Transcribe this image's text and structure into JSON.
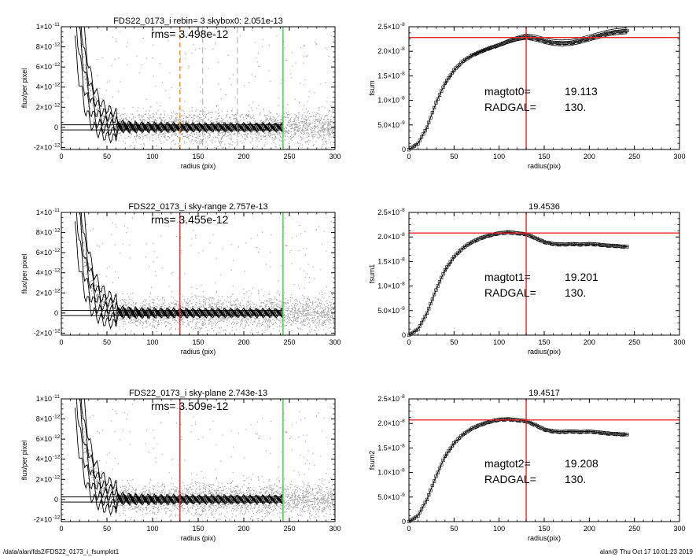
{
  "footer": {
    "left": "/data/alan/fds2/FDS22_0173_i_fsumplot1",
    "right": "alan@  Thu Oct 17 10:01:23 2019"
  },
  "colors": {
    "red": "#e8262b",
    "green": "#35d435",
    "orange": "#f08a1c",
    "gray": "#9a9a9a",
    "black": "#000000"
  },
  "chart_data": [
    {
      "id": "profile-1",
      "type": "scatter",
      "title": "FDS22_0173_i rebin= 3    skybox0:  2.051e-13",
      "annotation": "rms= 3.498e-12",
      "xlabel": "radius (pix)",
      "ylabel": "flux/per pixel",
      "xlim": [
        0,
        300
      ],
      "ylim": [
        -2.2e-12,
        1e-11
      ],
      "xticks": [
        "0",
        "50",
        "100",
        "150",
        "200",
        "250",
        "300"
      ],
      "yticks": [
        {
          "v": 1e-11,
          "m": "1×10",
          "e": "-11"
        },
        {
          "v": 8e-12,
          "m": "8×10",
          "e": "-12"
        },
        {
          "v": 6e-12,
          "m": "6×10",
          "e": "-12"
        },
        {
          "v": 4e-12,
          "m": "4×10",
          "e": "-12"
        },
        {
          "v": 2e-12,
          "m": "2×10",
          "e": "-12"
        },
        {
          "v": 0,
          "m": "0",
          "e": ""
        },
        {
          "v": -2e-12,
          "m": "-2×10",
          "e": "-12"
        }
      ],
      "vlines": [
        {
          "x": 130,
          "color": "orange",
          "style": "dashed"
        },
        {
          "x": 155,
          "color": "gray",
          "style": "dashed"
        },
        {
          "x": 193,
          "color": "gray",
          "style": "dashed"
        },
        {
          "x": 243,
          "color": "green",
          "style": "solid"
        }
      ],
      "hlines": [
        2.5e-13,
        -2.5e-13
      ],
      "profile": {
        "r0": 15,
        "a": 1.6e-11,
        "rs": 10,
        "rmax": 243
      }
    },
    {
      "id": "growth-1",
      "type": "line",
      "title": "",
      "xlabel": "radius(pix)",
      "ylabel": "fsum",
      "xlim": [
        0,
        300
      ],
      "ylim": [
        0,
        2.5e-08
      ],
      "xticks": [
        "0",
        "50",
        "100",
        "150",
        "200",
        "250",
        "300"
      ],
      "yticks": [
        {
          "v": 2.5e-08,
          "m": "2.5×10",
          "e": "-8"
        },
        {
          "v": 2e-08,
          "m": "2.0×10",
          "e": "-8"
        },
        {
          "v": 1.5e-08,
          "m": "1.5×10",
          "e": "-8"
        },
        {
          "v": 1e-08,
          "m": "1.0×10",
          "e": "-8"
        },
        {
          "v": 5e-09,
          "m": "5.0×10",
          "e": "-9"
        },
        {
          "v": 0,
          "m": "0",
          "e": ""
        }
      ],
      "vline_x": 130,
      "hline_y": 2.28e-08,
      "curve": [
        [
          0,
          0
        ],
        [
          10,
          1.2e-09
        ],
        [
          20,
          4.5e-09
        ],
        [
          30,
          9.5e-09
        ],
        [
          40,
          1.35e-08
        ],
        [
          50,
          1.62e-08
        ],
        [
          60,
          1.8e-08
        ],
        [
          70,
          1.92e-08
        ],
        [
          80,
          2e-08
        ],
        [
          90,
          2.07e-08
        ],
        [
          100,
          2.13e-08
        ],
        [
          110,
          2.2e-08
        ],
        [
          120,
          2.26e-08
        ],
        [
          130,
          2.3e-08
        ],
        [
          140,
          2.27e-08
        ],
        [
          150,
          2.22e-08
        ],
        [
          160,
          2.18e-08
        ],
        [
          170,
          2.17e-08
        ],
        [
          180,
          2.18e-08
        ],
        [
          190,
          2.22e-08
        ],
        [
          200,
          2.27e-08
        ],
        [
          210,
          2.32e-08
        ],
        [
          220,
          2.37e-08
        ],
        [
          230,
          2.4e-08
        ],
        [
          243,
          2.42e-08
        ]
      ],
      "envelope": 6e-10,
      "labels": [
        [
          "magtot0=",
          "19.113"
        ],
        [
          "RADGAL=",
          "130."
        ]
      ]
    },
    {
      "id": "profile-2",
      "type": "scatter",
      "title": "FDS22_0173_i sky-range  2.757e-13",
      "annotation": "rms= 3.455e-12",
      "xlabel": "radius (pix)",
      "ylabel": "flux/per pixel",
      "xlim": [
        0,
        300
      ],
      "ylim": [
        -2.2e-12,
        1e-11
      ],
      "xticks": [
        "0",
        "50",
        "100",
        "150",
        "200",
        "250",
        "300"
      ],
      "yticks": [
        {
          "v": 1e-11,
          "m": "1×10",
          "e": "-11"
        },
        {
          "v": 8e-12,
          "m": "8×10",
          "e": "-12"
        },
        {
          "v": 6e-12,
          "m": "6×10",
          "e": "-12"
        },
        {
          "v": 4e-12,
          "m": "4×10",
          "e": "-12"
        },
        {
          "v": 2e-12,
          "m": "2×10",
          "e": "-12"
        },
        {
          "v": 0,
          "m": "0",
          "e": ""
        },
        {
          "v": -2e-12,
          "m": "-2×10",
          "e": "-12"
        }
      ],
      "vlines": [
        {
          "x": 130,
          "color": "red",
          "style": "solid"
        },
        {
          "x": 243,
          "color": "green",
          "style": "solid"
        }
      ],
      "hlines": [
        2.5e-13,
        -2.5e-13
      ],
      "profile": {
        "r0": 15,
        "a": 1.6e-11,
        "rs": 10,
        "rmax": 243
      }
    },
    {
      "id": "growth-2",
      "type": "line",
      "title": "19.4536",
      "xlabel": "radius(pix)",
      "ylabel": "fsum1",
      "xlim": [
        0,
        300
      ],
      "ylim": [
        0,
        2.5e-08
      ],
      "xticks": [
        "0",
        "50",
        "100",
        "150",
        "200",
        "250",
        "300"
      ],
      "yticks": [
        {
          "v": 2.5e-08,
          "m": "2.5×10",
          "e": "-8"
        },
        {
          "v": 2e-08,
          "m": "2.0×10",
          "e": "-8"
        },
        {
          "v": 1.5e-08,
          "m": "1.5×10",
          "e": "-8"
        },
        {
          "v": 1e-08,
          "m": "1.0×10",
          "e": "-8"
        },
        {
          "v": 5e-09,
          "m": "5.0×10",
          "e": "-9"
        },
        {
          "v": 0,
          "m": "0",
          "e": ""
        }
      ],
      "vline_x": 130,
      "hline_y": 2.08e-08,
      "curve": [
        [
          0,
          0
        ],
        [
          10,
          1.2e-09
        ],
        [
          20,
          4.5e-09
        ],
        [
          30,
          9.2e-09
        ],
        [
          40,
          1.33e-08
        ],
        [
          50,
          1.6e-08
        ],
        [
          60,
          1.78e-08
        ],
        [
          70,
          1.9e-08
        ],
        [
          80,
          1.98e-08
        ],
        [
          90,
          2.04e-08
        ],
        [
          100,
          2.08e-08
        ],
        [
          110,
          2.1e-08
        ],
        [
          120,
          2.08e-08
        ],
        [
          130,
          2.06e-08
        ],
        [
          140,
          1.98e-08
        ],
        [
          150,
          1.9e-08
        ],
        [
          160,
          1.86e-08
        ],
        [
          170,
          1.85e-08
        ],
        [
          180,
          1.86e-08
        ],
        [
          190,
          1.85e-08
        ],
        [
          200,
          1.86e-08
        ],
        [
          210,
          1.85e-08
        ],
        [
          220,
          1.83e-08
        ],
        [
          230,
          1.82e-08
        ],
        [
          243,
          1.8e-08
        ]
      ],
      "envelope": 0,
      "labels": [
        [
          "magtot1=",
          "19.201"
        ],
        [
          "RADGAL=",
          "130."
        ]
      ]
    },
    {
      "id": "profile-3",
      "type": "scatter",
      "title": "FDS22_0173_i sky-plane  2.743e-13",
      "annotation": "rms= 3.509e-12",
      "xlabel": "radius (pix)",
      "ylabel": "flux/per pixel",
      "xlim": [
        0,
        300
      ],
      "ylim": [
        -2.2e-12,
        1e-11
      ],
      "xticks": [
        "0",
        "50",
        "100",
        "150",
        "200",
        "250",
        "300"
      ],
      "yticks": [
        {
          "v": 1e-11,
          "m": "1×10",
          "e": "-11"
        },
        {
          "v": 8e-12,
          "m": "8×10",
          "e": "-12"
        },
        {
          "v": 6e-12,
          "m": "6×10",
          "e": "-12"
        },
        {
          "v": 4e-12,
          "m": "4×10",
          "e": "-12"
        },
        {
          "v": 2e-12,
          "m": "2×10",
          "e": "-12"
        },
        {
          "v": 0,
          "m": "0",
          "e": ""
        },
        {
          "v": -2e-12,
          "m": "-2×10",
          "e": "-12"
        }
      ],
      "vlines": [
        {
          "x": 130,
          "color": "red",
          "style": "solid"
        },
        {
          "x": 243,
          "color": "green",
          "style": "solid"
        }
      ],
      "hlines": [
        2.5e-13,
        -2.5e-13
      ],
      "profile": {
        "r0": 15,
        "a": 1.6e-11,
        "rs": 10,
        "rmax": 243
      }
    },
    {
      "id": "growth-3",
      "type": "line",
      "title": "19.4517",
      "xlabel": "radius(pix)",
      "ylabel": "fsum2",
      "xlim": [
        0,
        300
      ],
      "ylim": [
        0,
        2.5e-08
      ],
      "xticks": [
        "0",
        "50",
        "100",
        "150",
        "200",
        "250",
        "300"
      ],
      "yticks": [
        {
          "v": 2.5e-08,
          "m": "2.5×10",
          "e": "-8"
        },
        {
          "v": 2e-08,
          "m": "2.0×10",
          "e": "-8"
        },
        {
          "v": 1.5e-08,
          "m": "1.5×10",
          "e": "-8"
        },
        {
          "v": 1e-08,
          "m": "1.0×10",
          "e": "-8"
        },
        {
          "v": 5e-09,
          "m": "5.0×10",
          "e": "-9"
        },
        {
          "v": 0,
          "m": "0",
          "e": ""
        }
      ],
      "vline_x": 130,
      "hline_y": 2.07e-08,
      "curve": [
        [
          0,
          0
        ],
        [
          10,
          1.2e-09
        ],
        [
          20,
          4.5e-09
        ],
        [
          30,
          9.2e-09
        ],
        [
          40,
          1.33e-08
        ],
        [
          50,
          1.6e-08
        ],
        [
          60,
          1.78e-08
        ],
        [
          70,
          1.9e-08
        ],
        [
          80,
          1.98e-08
        ],
        [
          90,
          2.04e-08
        ],
        [
          100,
          2.08e-08
        ],
        [
          110,
          2.09e-08
        ],
        [
          120,
          2.07e-08
        ],
        [
          130,
          2.05e-08
        ],
        [
          140,
          1.97e-08
        ],
        [
          150,
          1.88e-08
        ],
        [
          160,
          1.84e-08
        ],
        [
          170,
          1.83e-08
        ],
        [
          180,
          1.84e-08
        ],
        [
          190,
          1.83e-08
        ],
        [
          200,
          1.84e-08
        ],
        [
          210,
          1.82e-08
        ],
        [
          220,
          1.8e-08
        ],
        [
          230,
          1.79e-08
        ],
        [
          243,
          1.77e-08
        ]
      ],
      "envelope": 0,
      "labels": [
        [
          "magtot2=",
          "19.208"
        ],
        [
          "RADGAL=",
          "130."
        ]
      ]
    }
  ]
}
